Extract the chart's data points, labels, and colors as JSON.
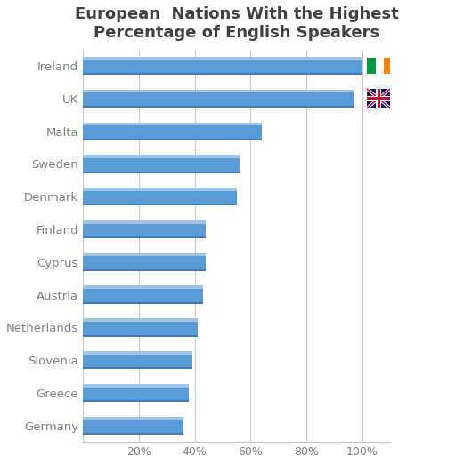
{
  "title": "European  Nations With the Highest\nPercentage of English Speakers",
  "countries": [
    "Germany",
    "Greece",
    "Slovenia",
    "Netherlands",
    "Austria",
    "Cyprus",
    "Finland",
    "Denmark",
    "Sweden",
    "Malta",
    "UK",
    "Ireland"
  ],
  "values": [
    36,
    38,
    39,
    41,
    43,
    44,
    44,
    55,
    56,
    64,
    97,
    100
  ],
  "bar_color": "#5B9BD5",
  "bar_highlight": "#A0C4E8",
  "background_color": "#FFFFFF",
  "grid_color": "#C8C8C8",
  "title_color": "#404040",
  "label_color": "#7F7F7F",
  "xlim": [
    0,
    110
  ],
  "xticks": [
    0,
    20,
    40,
    60,
    80,
    100
  ],
  "xtick_labels": [
    "",
    "20%",
    "40%",
    "60%",
    "80%",
    "100%"
  ],
  "title_fontsize": 13,
  "label_fontsize": 9.5,
  "bar_height": 0.55
}
